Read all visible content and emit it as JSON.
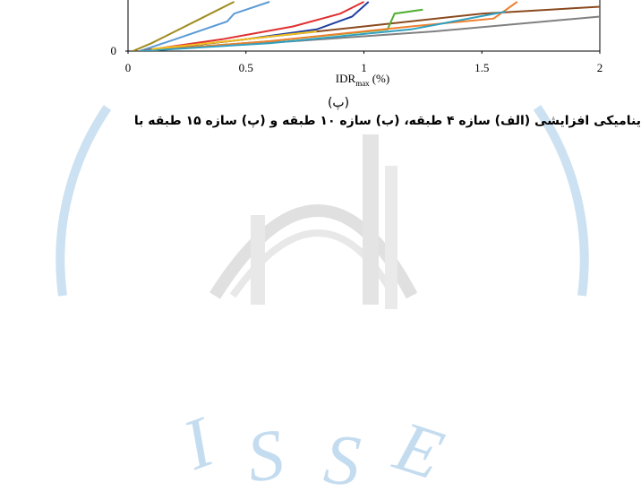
{
  "chart_data": {
    "type": "line",
    "xlim": [
      0,
      2
    ],
    "xticks": [
      0,
      0.5,
      1,
      1.5,
      2
    ],
    "ylim": [
      0,
      0.5
    ],
    "yticks": [
      0
    ],
    "x_label": {
      "main": "IDR",
      "subscript": "max",
      "unit": "(%)"
    },
    "series": [
      {
        "color": "#a08c1e",
        "x": [
          0.02,
          0.1,
          0.2,
          0.3,
          0.45
        ],
        "values": [
          0,
          0.08,
          0.2,
          0.32,
          0.5
        ]
      },
      {
        "color": "#5b9bd5",
        "x": [
          0.05,
          0.2,
          0.42,
          0.45,
          0.6
        ],
        "values": [
          0,
          0.12,
          0.3,
          0.38,
          0.5
        ]
      },
      {
        "color": "#e03030",
        "x": [
          0.05,
          0.4,
          0.7,
          0.9,
          1.0
        ],
        "values": [
          0,
          0.12,
          0.25,
          0.38,
          0.5
        ]
      },
      {
        "color": "#2040a0",
        "x": [
          0.05,
          0.5,
          0.8,
          0.95,
          1.02
        ],
        "values": [
          0,
          0.12,
          0.22,
          0.35,
          0.5
        ]
      },
      {
        "color": "#8b4a1e",
        "x": [
          0.05,
          0.5,
          1.0,
          1.5,
          2.0
        ],
        "values": [
          0,
          0.12,
          0.25,
          0.38,
          0.45
        ]
      },
      {
        "color": "#808080",
        "x": [
          0.05,
          0.7,
          1.3,
          2.0
        ],
        "values": [
          0,
          0.1,
          0.2,
          0.35
        ]
      },
      {
        "color": "#50b030",
        "x": [
          0.05,
          0.6,
          1.1,
          1.13,
          1.25
        ],
        "values": [
          0,
          0.1,
          0.22,
          0.38,
          0.42
        ]
      },
      {
        "color": "#f08030",
        "x": [
          0.05,
          0.6,
          1.2,
          1.55,
          1.65
        ],
        "values": [
          0,
          0.1,
          0.25,
          0.33,
          0.5
        ]
      },
      {
        "color": "#30a0c0",
        "x": [
          0.05,
          0.6,
          1.2,
          1.6
        ],
        "values": [
          0,
          0.08,
          0.22,
          0.4
        ]
      },
      {
        "color": "#f0c020",
        "x": [
          0.1,
          0.5,
          0.8
        ],
        "values": [
          0.02,
          0.12,
          0.2
        ]
      }
    ]
  },
  "caption": {
    "panel": "(پ)",
    "text": "ینامیکی افزایشی (الف) سازه ۴ طبقه، (ب) سازه ۱۰ طبقه و (پ) سازه ۱۵ طبقه با"
  },
  "watermark": "ISSE"
}
